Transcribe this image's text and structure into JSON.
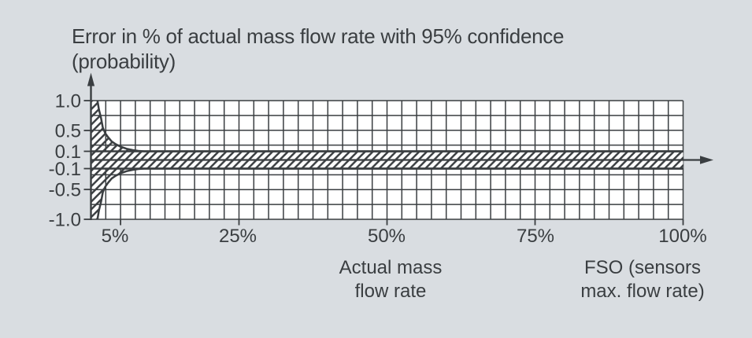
{
  "title": {
    "line1": "Error in % of actual mass flow rate with 95% confidence",
    "line2": "(probability)"
  },
  "colors": {
    "background": "#d9dde1",
    "plot_background": "#ffffff",
    "line": "#3a3e41",
    "text": "#3a3e41"
  },
  "y_axis": {
    "labels": [
      "1.0",
      "0.5",
      "0.1",
      "-0.1",
      "-0.5",
      "-1.0"
    ]
  },
  "x_axis": {
    "labels": [
      "5%",
      "25%",
      "50%",
      "75%",
      "100%"
    ]
  },
  "annotations": {
    "flow_line1": "Actual mass",
    "flow_line2": "flow rate",
    "fso_line1": "FSO (sensors",
    "fso_line2": "max. flow rate)"
  },
  "chart_data": {
    "type": "area",
    "title": "Error in % of actual mass flow rate with 95% confidence (probability)",
    "xlabel": "Actual mass flow rate, % of FSO (sensors max. flow rate)",
    "ylabel": "Error in % of actual mass flow rate",
    "xlim": [
      0,
      100
    ],
    "x_tick_values": [
      5,
      25,
      50,
      75,
      100
    ],
    "x_tick_labels": [
      "5%",
      "25%",
      "50%",
      "75%",
      "100%"
    ],
    "y_tick_values": [
      1.0,
      0.5,
      0.1,
      -0.1,
      -0.5,
      -1.0
    ],
    "y_tick_labels": [
      "1.0",
      "0.5",
      "0.1",
      "-0.1",
      "-0.5",
      "-1.0"
    ],
    "y_scale": "nonlinear symmetric (compressed toward zero)",
    "grid": {
      "on": true,
      "cols": 40,
      "rows": 8
    },
    "legend": "none",
    "constant_error_band_pct": [
      -0.1,
      0.1
    ],
    "envelope_symmetric": true,
    "envelope_upper": [
      [
        1.1,
        1.0
      ],
      [
        1.35,
        0.85
      ],
      [
        1.7,
        0.71
      ],
      [
        2.0,
        0.55
      ],
      [
        2.4,
        0.45
      ],
      [
        2.9,
        0.37
      ],
      [
        3.5,
        0.29
      ],
      [
        4.2,
        0.235
      ],
      [
        5.0,
        0.19
      ],
      [
        6.0,
        0.15
      ],
      [
        7.0,
        0.125
      ],
      [
        8.0,
        0.108
      ],
      [
        9.0,
        0.1
      ],
      [
        100,
        0.1
      ]
    ]
  }
}
